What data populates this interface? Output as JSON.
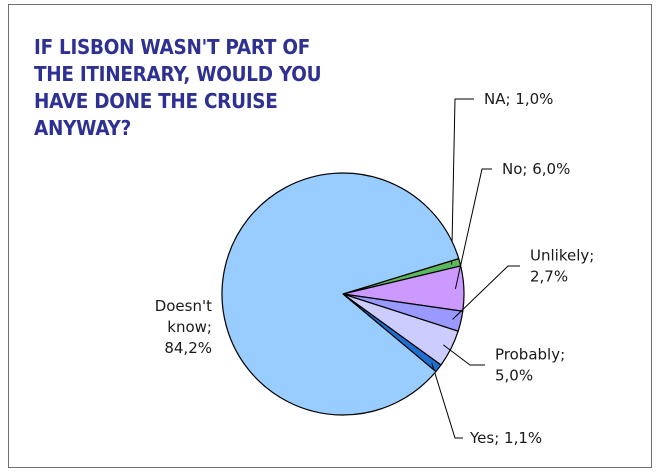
{
  "chart_data": {
    "type": "pie",
    "title": "IF LISBON WASN'T PART OF THE ITINERARY, WOULD YOU HAVE DONE THE CRUISE ANYWAY?",
    "slices": [
      {
        "name": "NA",
        "value": 1.0,
        "label_lines": [
          "NA; 1,0%"
        ],
        "color": "#5cb85c"
      },
      {
        "name": "No",
        "value": 6.0,
        "label_lines": [
          "No; 6,0%"
        ],
        "color": "#cc99ff"
      },
      {
        "name": "Unlikely",
        "value": 2.7,
        "label_lines": [
          "Unlikely;",
          "2,7%"
        ],
        "color": "#9999ff"
      },
      {
        "name": "Probably",
        "value": 5.0,
        "label_lines": [
          "Probably;",
          "5,0%"
        ],
        "color": "#ccccff"
      },
      {
        "name": "Yes",
        "value": 1.1,
        "label_lines": [
          "Yes; 1,1%"
        ],
        "color": "#1f6fd1"
      },
      {
        "name": "Doesn't know",
        "value": 84.2,
        "label_lines": [
          "Doesn't",
          "know;",
          "84,2%"
        ],
        "color": "#99ccff"
      }
    ],
    "legend": "none"
  }
}
